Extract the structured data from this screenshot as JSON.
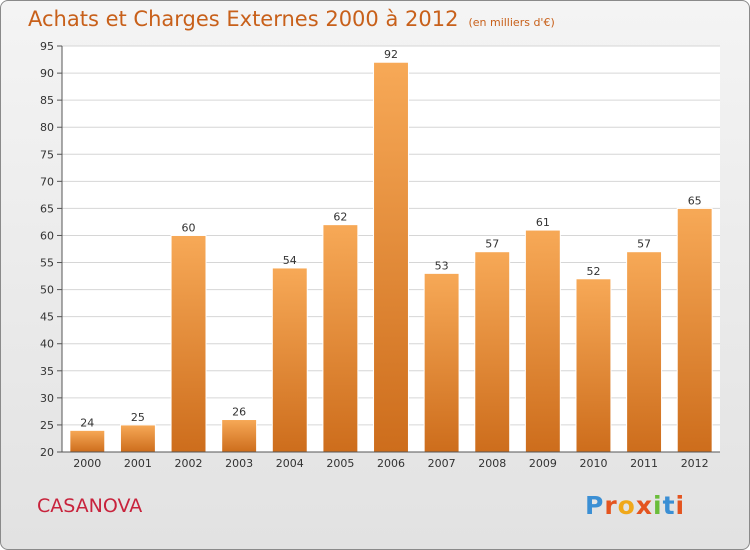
{
  "title": "Achats et Charges Externes 2000 à 2012",
  "unit": "(en milliers d'€)",
  "place": "CASANOVA",
  "brand": "Proxiti",
  "colors": {
    "bar_top": "#f7a957",
    "bar_bottom": "#cd6d1c",
    "title": "#c8601a",
    "place": "#c8233c"
  },
  "chart_data": {
    "type": "bar",
    "categories": [
      "2000",
      "2001",
      "2002",
      "2003",
      "2004",
      "2005",
      "2006",
      "2007",
      "2008",
      "2009",
      "2010",
      "2011",
      "2012"
    ],
    "values": [
      24,
      25,
      60,
      26,
      54,
      62,
      92,
      53,
      57,
      61,
      52,
      57,
      65
    ],
    "ylim": [
      20,
      95
    ],
    "yticks": [
      20,
      25,
      30,
      35,
      40,
      45,
      50,
      55,
      60,
      65,
      70,
      75,
      80,
      85,
      90,
      95
    ],
    "grid": true
  }
}
